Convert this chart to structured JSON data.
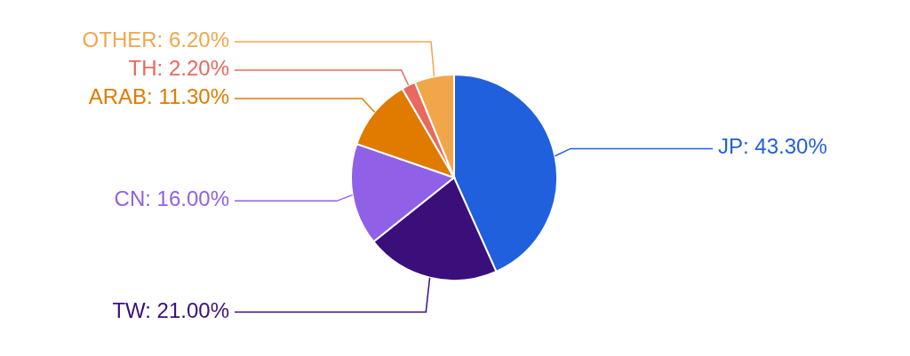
{
  "chart_data": {
    "type": "pie",
    "categories": [
      "JP",
      "TW",
      "CN",
      "ARAB",
      "TH",
      "OTHER"
    ],
    "values": [
      43.3,
      21.0,
      16.0,
      11.3,
      2.2,
      6.2
    ],
    "value_labels": [
      ": 43.30%",
      ": 21.00%",
      ": 16.00%",
      ": 11.30%",
      ": 2.20%",
      ": 6.20%"
    ],
    "colors": [
      "#2160dc",
      "#3a0f7a",
      "#9061e6",
      "#e07b00",
      "#e8695e",
      "#f2a64a"
    ]
  }
}
